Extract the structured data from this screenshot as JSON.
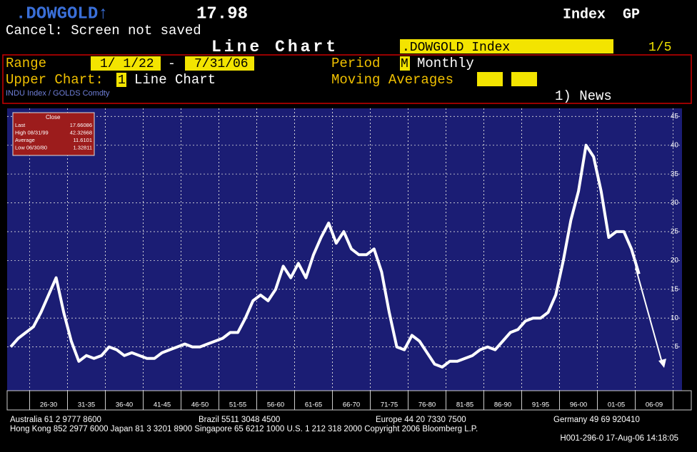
{
  "header": {
    "ticker": ".DOWGOLD↑",
    "price": "17.98",
    "index_label": "Index",
    "function": "GP",
    "status": "Cancel: Screen not saved",
    "screen_title": "Line Chart",
    "security": ".DOWGOLD Index",
    "page": "1/5"
  },
  "settings": {
    "range_label": "Range",
    "range_start": "1/ 1/22",
    "range_sep": "-",
    "range_end": "7/31/06",
    "period_label": "Period",
    "period_code": "M",
    "period_name": "Monthly",
    "upper_chart_label": "Upper Chart:",
    "upper_chart_code": "1",
    "upper_chart_name": "Line Chart",
    "moving_averages_label": "Moving Averages",
    "formula": "INDU Index / GOLDS Comdty",
    "news": "1) News"
  },
  "stats_box": {
    "title": "Close",
    "rows": [
      [
        "Last",
        "17.66086"
      ],
      [
        "High  08/31/99",
        "42.32668"
      ],
      [
        "Average",
        "11.6101"
      ],
      [
        "Low  06/30/80",
        "1.32811"
      ]
    ]
  },
  "chart_data": {
    "type": "line",
    "color": "#ffffff",
    "categories": [
      null,
      null,
      null,
      null,
      null,
      "26-30",
      null,
      null,
      null,
      null,
      "31-35",
      null,
      null,
      null,
      null,
      "36-40",
      null,
      null,
      null,
      null,
      "41-45",
      null,
      null,
      null,
      null,
      "46-50",
      null,
      null,
      null,
      null,
      "51-55",
      null,
      null,
      null,
      null,
      "56-60",
      null,
      null,
      null,
      null,
      "61-65",
      null,
      null,
      null,
      null,
      "66-70",
      null,
      null,
      null,
      null,
      "71-75",
      null,
      null,
      null,
      null,
      "76-80",
      null,
      null,
      null,
      null,
      "81-85",
      null,
      null,
      null,
      null,
      "86-90",
      null,
      null,
      null,
      null,
      "91-95",
      null,
      null,
      null,
      null,
      "96-00",
      null,
      null,
      null,
      null,
      "01-05",
      null,
      null,
      null,
      null,
      "06-09"
    ],
    "values": [
      5,
      6.5,
      7.5,
      8.5,
      11,
      14,
      17,
      11,
      6,
      2.5,
      3.5,
      3,
      3.5,
      5,
      4.5,
      3.5,
      4,
      3.5,
      3,
      3,
      4,
      4.5,
      5,
      5.5,
      5,
      5,
      5.5,
      6,
      6.5,
      7.5,
      7.5,
      10,
      13,
      14,
      13,
      15,
      19,
      17,
      19.5,
      17,
      21,
      24,
      26.5,
      23,
      25,
      22,
      21,
      21,
      22,
      18,
      11,
      5,
      4.5,
      7,
      6,
      4,
      2,
      1.5,
      2.5,
      2.5,
      3,
      3.5,
      4.5,
      5,
      4.5,
      6,
      7.5,
      8,
      9.5,
      10,
      10,
      11,
      14,
      20,
      27,
      32,
      40,
      38,
      32,
      24,
      25,
      25,
      22,
      17.66,
      null,
      null
    ],
    "ylim": [
      -2.6,
      46.4
    ],
    "yticks": [
      5,
      10,
      15,
      20,
      25,
      30,
      35,
      40,
      45
    ],
    "grid": true
  },
  "footer": {
    "row1": [
      "Australia 61 2 9777 8600",
      "Brazil 5511 3048 4500",
      "Europe 44 20 7330 7500",
      "Germany 49 69 920410"
    ],
    "row2": "Hong Kong 852 2977 6000 Japan 81 3 3201 8900 Singapore 65 6212 1000 U.S. 1 212 318 2000 Copyright 2006 Bloomberg L.P.",
    "row3": "H001-296-0 17-Aug-06 14:18:05"
  }
}
